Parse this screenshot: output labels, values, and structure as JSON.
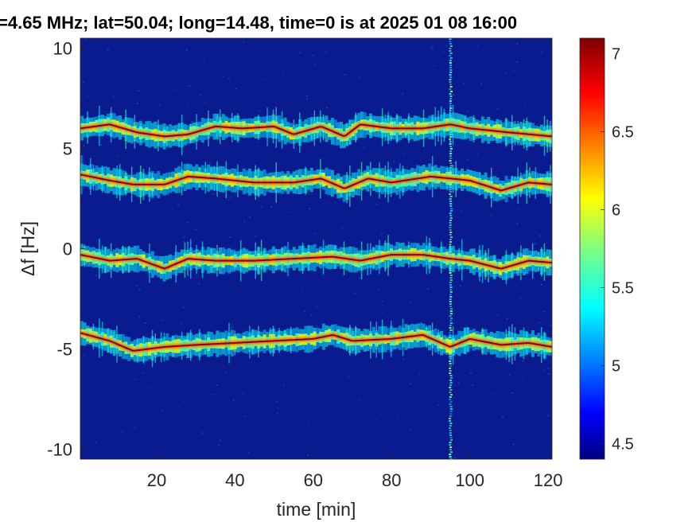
{
  "figure": {
    "title": "=4.65 MHz;  lat=50.04; long=14.48, time=0 is at 2025 01 08 16:00"
  },
  "chart_data": {
    "type": "heatmap",
    "title": "=4.65 MHz;  lat=50.04; long=14.48, time=0 is at 2025 01 08 16:00",
    "xlabel": "time [min]",
    "ylabel": "Δf [Hz]",
    "xlim": [
      0.5,
      121
    ],
    "ylim": [
      -10.5,
      10.5
    ],
    "xticks": [
      20,
      40,
      60,
      80,
      100,
      120
    ],
    "yticks": [
      -10,
      -5,
      0,
      5,
      10
    ],
    "colormap": "jet",
    "background_color": "#0a1a8f",
    "colorbar": {
      "clim": [
        4.4,
        7.1
      ],
      "ticks": [
        4.5,
        5,
        5.5,
        6,
        6.5,
        7
      ],
      "tick_labels": [
        "4.5",
        "5",
        "5.5",
        "6",
        "6.5",
        "7"
      ]
    },
    "bands": [
      {
        "name": "band-1",
        "track": [
          [
            0.5,
            6.0
          ],
          [
            8,
            6.2
          ],
          [
            15,
            5.8
          ],
          [
            22,
            5.6
          ],
          [
            28,
            5.7
          ],
          [
            35,
            6.1
          ],
          [
            42,
            6.0
          ],
          [
            50,
            6.1
          ],
          [
            55,
            5.7
          ],
          [
            62,
            6.1
          ],
          [
            68,
            5.6
          ],
          [
            72,
            6.2
          ],
          [
            80,
            6.0
          ],
          [
            88,
            6.0
          ],
          [
            95,
            6.2
          ],
          [
            100,
            6.0
          ],
          [
            110,
            5.8
          ],
          [
            121,
            5.6
          ]
        ]
      },
      {
        "name": "band-2",
        "track": [
          [
            0.5,
            3.7
          ],
          [
            8,
            3.4
          ],
          [
            14,
            3.2
          ],
          [
            22,
            3.2
          ],
          [
            28,
            3.6
          ],
          [
            35,
            3.5
          ],
          [
            45,
            3.3
          ],
          [
            55,
            3.3
          ],
          [
            62,
            3.5
          ],
          [
            68,
            3.0
          ],
          [
            74,
            3.5
          ],
          [
            80,
            3.3
          ],
          [
            90,
            3.6
          ],
          [
            100,
            3.4
          ],
          [
            108,
            2.9
          ],
          [
            115,
            3.3
          ],
          [
            121,
            3.2
          ]
        ]
      },
      {
        "name": "band-3",
        "track": [
          [
            0.5,
            -0.3
          ],
          [
            8,
            -0.6
          ],
          [
            15,
            -0.5
          ],
          [
            22,
            -1.0
          ],
          [
            28,
            -0.5
          ],
          [
            35,
            -0.6
          ],
          [
            45,
            -0.6
          ],
          [
            55,
            -0.5
          ],
          [
            65,
            -0.4
          ],
          [
            72,
            -0.6
          ],
          [
            80,
            -0.3
          ],
          [
            88,
            -0.3
          ],
          [
            95,
            -0.5
          ],
          [
            100,
            -0.6
          ],
          [
            108,
            -1.0
          ],
          [
            115,
            -0.6
          ],
          [
            121,
            -0.7
          ]
        ]
      },
      {
        "name": "band-4",
        "track": [
          [
            0.5,
            -4.2
          ],
          [
            8,
            -4.6
          ],
          [
            14,
            -5.1
          ],
          [
            22,
            -4.9
          ],
          [
            30,
            -4.8
          ],
          [
            40,
            -4.7
          ],
          [
            50,
            -4.6
          ],
          [
            60,
            -4.5
          ],
          [
            65,
            -4.3
          ],
          [
            70,
            -4.6
          ],
          [
            80,
            -4.5
          ],
          [
            88,
            -4.3
          ],
          [
            95,
            -4.9
          ],
          [
            100,
            -4.5
          ],
          [
            108,
            -4.8
          ],
          [
            115,
            -4.7
          ],
          [
            121,
            -4.9
          ]
        ]
      }
    ],
    "vertical_streak_x": 95
  }
}
